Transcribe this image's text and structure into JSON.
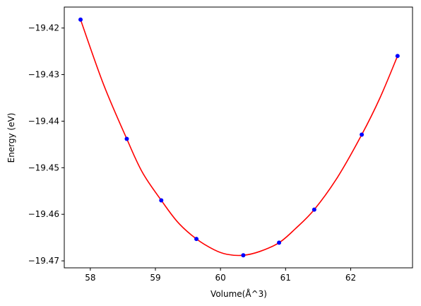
{
  "chart_data": {
    "type": "scatter",
    "title": "",
    "xlabel": "Volume(Å^3)",
    "ylabel": "Energy (eV)",
    "xlim": [
      57.6,
      62.95
    ],
    "ylim": [
      -19.4715,
      -19.4155
    ],
    "x_ticks": [
      58,
      59,
      60,
      61,
      62
    ],
    "y_ticks": [
      -19.42,
      -19.43,
      -19.44,
      -19.45,
      -19.46,
      -19.47
    ],
    "x_tick_labels": [
      "58",
      "59",
      "60",
      "61",
      "62"
    ],
    "y_tick_labels": [
      "−19.42",
      "−19.43",
      "−19.44",
      "−19.45",
      "−19.46",
      "−19.47"
    ],
    "grid": false,
    "series": [
      {
        "kind": "points",
        "color": "#0000ff",
        "x": [
          57.85,
          58.56,
          59.09,
          59.63,
          60.35,
          60.9,
          61.44,
          62.17,
          62.72
        ],
        "y": [
          -19.4182,
          -19.4438,
          -19.457,
          -19.4653,
          -19.4688,
          -19.4661,
          -19.459,
          -19.4429,
          -19.426
        ]
      },
      {
        "kind": "fit-curve",
        "color": "#ff0000",
        "x": [
          57.85,
          58.2,
          58.56,
          58.8,
          59.09,
          59.35,
          59.63,
          59.9,
          60.1,
          60.35,
          60.6,
          60.9,
          61.15,
          61.44,
          61.8,
          62.17,
          62.45,
          62.72
        ],
        "y": [
          -19.4182,
          -19.432,
          -19.4438,
          -19.451,
          -19.457,
          -19.4618,
          -19.4653,
          -19.4676,
          -19.4686,
          -19.4688,
          -19.468,
          -19.4661,
          -19.4631,
          -19.459,
          -19.452,
          -19.4429,
          -19.435,
          -19.426
        ]
      }
    ]
  }
}
